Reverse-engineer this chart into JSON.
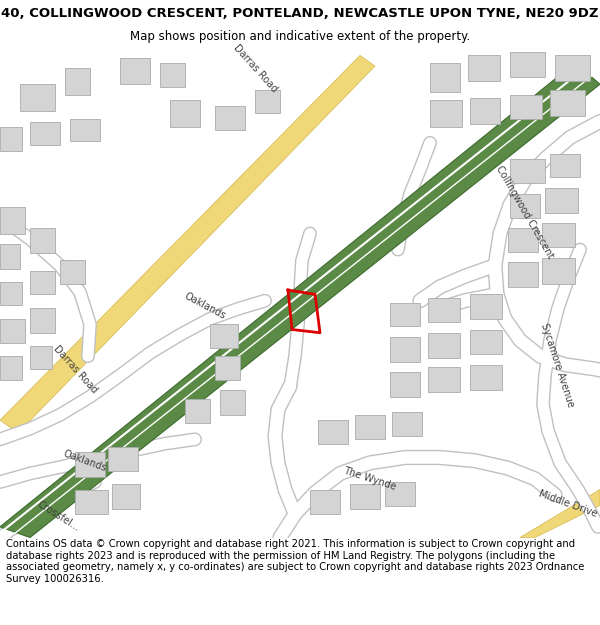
{
  "title_line1": "40, COLLINGWOOD CRESCENT, PONTELAND, NEWCASTLE UPON TYNE, NE20 9DZ",
  "title_line2": "Map shows position and indicative extent of the property.",
  "footer": "Contains OS data © Crown copyright and database right 2021. This information is subject to Crown copyright and database rights 2023 and is reproduced with the permission of HM Land Registry. The polygons (including the associated geometry, namely x, y co-ordinates) are subject to Crown copyright and database rights 2023 Ordnance Survey 100026316.",
  "bg_color": "#ffffff",
  "map_bg": "#f2f2f2",
  "building_color": "#d4d4d4",
  "building_edge": "#aaaaaa",
  "green_road_color": "#5a8a45",
  "green_road_edge": "#3d6b2e",
  "yellow_road_color": "#f0d878",
  "yellow_road_edge": "#d4b84a",
  "road_color": "#ffffff",
  "road_edge": "#c8c8c8",
  "property_color": "#dd0000",
  "road_label_color": "#404040",
  "title_fontsize": 9.5,
  "subtitle_fontsize": 8.5,
  "footer_fontsize": 7.2
}
